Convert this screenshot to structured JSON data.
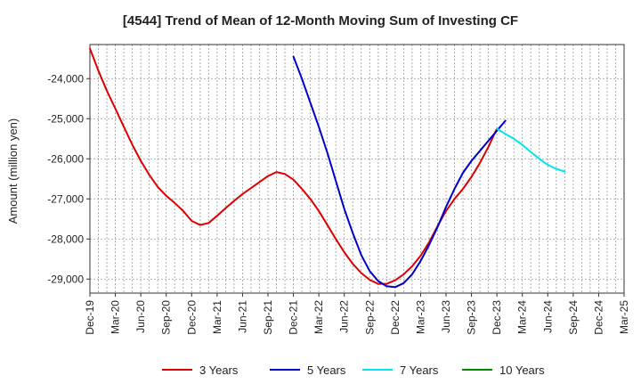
{
  "chart_data": {
    "type": "line",
    "title": "[4544]  Trend of Mean of 12-Month Moving Sum of Investing CF",
    "xlabel": "",
    "ylabel": "Amount (million yen)",
    "x_ticks": [
      "Dec-19",
      "Mar-20",
      "Jun-20",
      "Sep-20",
      "Dec-20",
      "Mar-21",
      "Jun-21",
      "Sep-21",
      "Dec-21",
      "Mar-22",
      "Jun-22",
      "Sep-22",
      "Dec-22",
      "Mar-23",
      "Jun-23",
      "Sep-23",
      "Dec-23",
      "Mar-24",
      "Jun-24",
      "Sep-24",
      "Dec-24",
      "Mar-25"
    ],
    "y_ticks": [
      -24000,
      -25000,
      -26000,
      -27000,
      -28000,
      -29000
    ],
    "y_tick_labels": [
      "-24,000",
      "-25,000",
      "-26,000",
      "-27,000",
      "-28,000",
      "-29,000"
    ],
    "ylim": [
      -29350,
      -23150
    ],
    "grid": true,
    "legend_position": "bottom",
    "series": [
      {
        "name": "3 Years",
        "color": "#dd0000",
        "start_index": 0,
        "values": [
          -23250,
          -23800,
          -24300,
          -24750,
          -25200,
          -25650,
          -26050,
          -26400,
          -26700,
          -26920,
          -27100,
          -27300,
          -27550,
          -27650,
          -27600,
          -27420,
          -27230,
          -27050,
          -26880,
          -26730,
          -26580,
          -26430,
          -26330,
          -26380,
          -26520,
          -26750,
          -27000,
          -27300,
          -27650,
          -28000,
          -28330,
          -28620,
          -28850,
          -29020,
          -29120,
          -29120,
          -29030,
          -28880,
          -28680,
          -28420,
          -28080,
          -27680,
          -27300,
          -27000,
          -26750,
          -26450,
          -26100,
          -25700,
          -25250
        ]
      },
      {
        "name": "5 Years",
        "color": "#0000cc",
        "start_index": 24,
        "values": [
          -23450,
          -24000,
          -24600,
          -25200,
          -25850,
          -26550,
          -27250,
          -27850,
          -28400,
          -28800,
          -29050,
          -29180,
          -29200,
          -29100,
          -28880,
          -28550,
          -28150,
          -27700,
          -27200,
          -26750,
          -26350,
          -26050,
          -25800,
          -25550,
          -25300,
          -25050
        ]
      },
      {
        "name": "7 Years",
        "color": "#00e5ee",
        "start_index": 48,
        "values": [
          -25250,
          -25380,
          -25500,
          -25650,
          -25830,
          -26000,
          -26150,
          -26250,
          -26320
        ]
      },
      {
        "name": "10 Years",
        "color": "#008800",
        "start_index": 0,
        "values": []
      }
    ]
  }
}
